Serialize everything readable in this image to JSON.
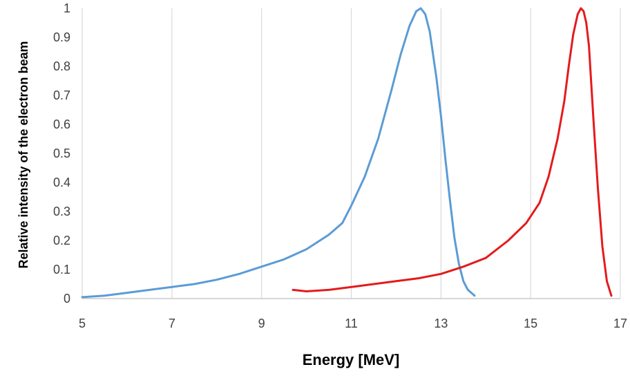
{
  "chart_data": {
    "type": "line",
    "xlabel": "Energy [MeV]",
    "ylabel": "Relative intensity of the electron beam",
    "xlim": [
      5,
      17
    ],
    "ylim": [
      0,
      1
    ],
    "x_ticks": [
      "5",
      "7",
      "9",
      "11",
      "13",
      "15",
      "17"
    ],
    "y_ticks": [
      "0",
      "0.1",
      "0.2",
      "0.3",
      "0.4",
      "0.5",
      "0.6",
      "0.7",
      "0.8",
      "0.9",
      "1"
    ],
    "grid": "vertical",
    "legend": "none",
    "series": [
      {
        "color": "#5b9bd5",
        "x": [
          5.0,
          5.5,
          6.0,
          6.5,
          7.0,
          7.5,
          8.0,
          8.5,
          9.0,
          9.5,
          10.0,
          10.5,
          10.8,
          11.0,
          11.3,
          11.6,
          11.9,
          12.1,
          12.3,
          12.45,
          12.55,
          12.65,
          12.75,
          12.9,
          13.0,
          13.1,
          13.2,
          13.3,
          13.4,
          13.5,
          13.6,
          13.75
        ],
        "y": [
          0.005,
          0.01,
          0.02,
          0.03,
          0.04,
          0.05,
          0.065,
          0.085,
          0.11,
          0.135,
          0.17,
          0.22,
          0.26,
          0.32,
          0.42,
          0.55,
          0.72,
          0.84,
          0.94,
          0.99,
          1.0,
          0.98,
          0.92,
          0.76,
          0.63,
          0.48,
          0.34,
          0.21,
          0.12,
          0.06,
          0.03,
          0.01
        ]
      },
      {
        "color": "#e41a1c",
        "x": [
          9.7,
          10.0,
          10.5,
          11.0,
          11.5,
          12.0,
          12.5,
          13.0,
          13.5,
          14.0,
          14.5,
          14.9,
          15.2,
          15.4,
          15.6,
          15.75,
          15.85,
          15.95,
          16.05,
          16.12,
          16.18,
          16.24,
          16.3,
          16.4,
          16.5,
          16.6,
          16.7,
          16.8
        ],
        "y": [
          0.03,
          0.025,
          0.03,
          0.04,
          0.05,
          0.06,
          0.07,
          0.085,
          0.11,
          0.14,
          0.2,
          0.26,
          0.33,
          0.42,
          0.55,
          0.68,
          0.8,
          0.91,
          0.98,
          1.0,
          0.99,
          0.95,
          0.87,
          0.62,
          0.38,
          0.18,
          0.06,
          0.01
        ]
      }
    ]
  }
}
